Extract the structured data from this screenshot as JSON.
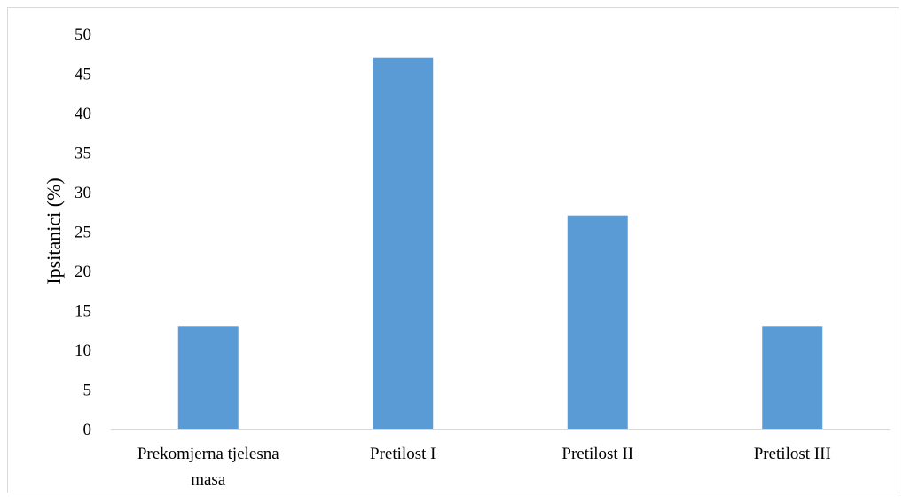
{
  "chart_data": {
    "type": "bar",
    "title": "",
    "xlabel": "",
    "ylabel": "Ipsitanici (%)",
    "categories": [
      [
        "Prekomjerna tjelesna",
        "masa"
      ],
      [
        "Pretilost I"
      ],
      [
        "Pretilost II"
      ],
      [
        "Pretilost III"
      ]
    ],
    "values": [
      13,
      47,
      27,
      13
    ],
    "ylim": [
      0,
      50
    ],
    "yticks": [
      0,
      5,
      10,
      15,
      20,
      25,
      30,
      35,
      40,
      45,
      50
    ],
    "grid": false,
    "legend": "none",
    "bar_color": "#5b9bd5",
    "axis_color": "#d9d9d9"
  }
}
